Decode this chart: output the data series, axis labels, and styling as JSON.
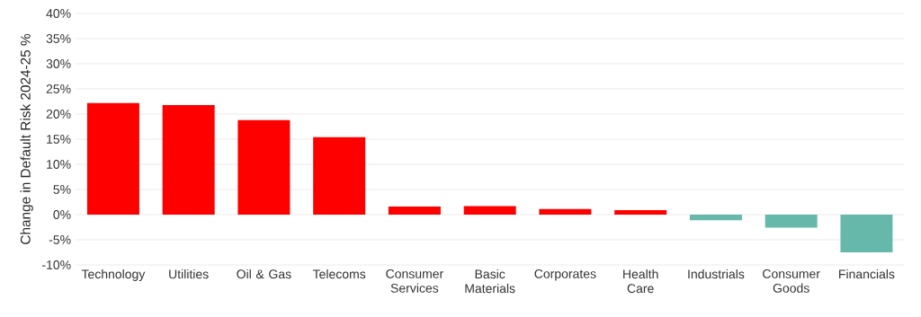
{
  "chart_data": {
    "type": "bar",
    "ylabel": "Change in Default Risk 2024-25 %",
    "categories": [
      "Technology",
      "Utilities",
      "Oil & Gas",
      "Telecoms",
      "Consumer Services",
      "Basic Materials",
      "Corporates",
      "Health Care",
      "Industrials",
      "Consumer Goods",
      "Financials"
    ],
    "values": [
      22.2,
      21.8,
      18.8,
      15.4,
      1.6,
      1.7,
      1.1,
      0.9,
      -1.1,
      -2.6,
      -7.5
    ],
    "colors": [
      "#ff0000",
      "#ff0000",
      "#ff0000",
      "#ff0000",
      "#ff0000",
      "#ff0000",
      "#ff0000",
      "#ff0000",
      "#66b8ab",
      "#66b8ab",
      "#66b8ab"
    ],
    "ylim": [
      -10,
      40
    ],
    "yticks": [
      {
        "value": -10,
        "label": "-10%"
      },
      {
        "value": -5,
        "label": "-5%"
      },
      {
        "value": 0,
        "label": "0%"
      },
      {
        "value": 5,
        "label": "5%"
      },
      {
        "value": 10,
        "label": "10%"
      },
      {
        "value": 15,
        "label": "15%"
      },
      {
        "value": 20,
        "label": "20%"
      },
      {
        "value": 25,
        "label": "25%"
      },
      {
        "value": 30,
        "label": "30%"
      },
      {
        "value": 35,
        "label": "35%"
      },
      {
        "value": 40,
        "label": "40%"
      }
    ],
    "grid": "y"
  }
}
